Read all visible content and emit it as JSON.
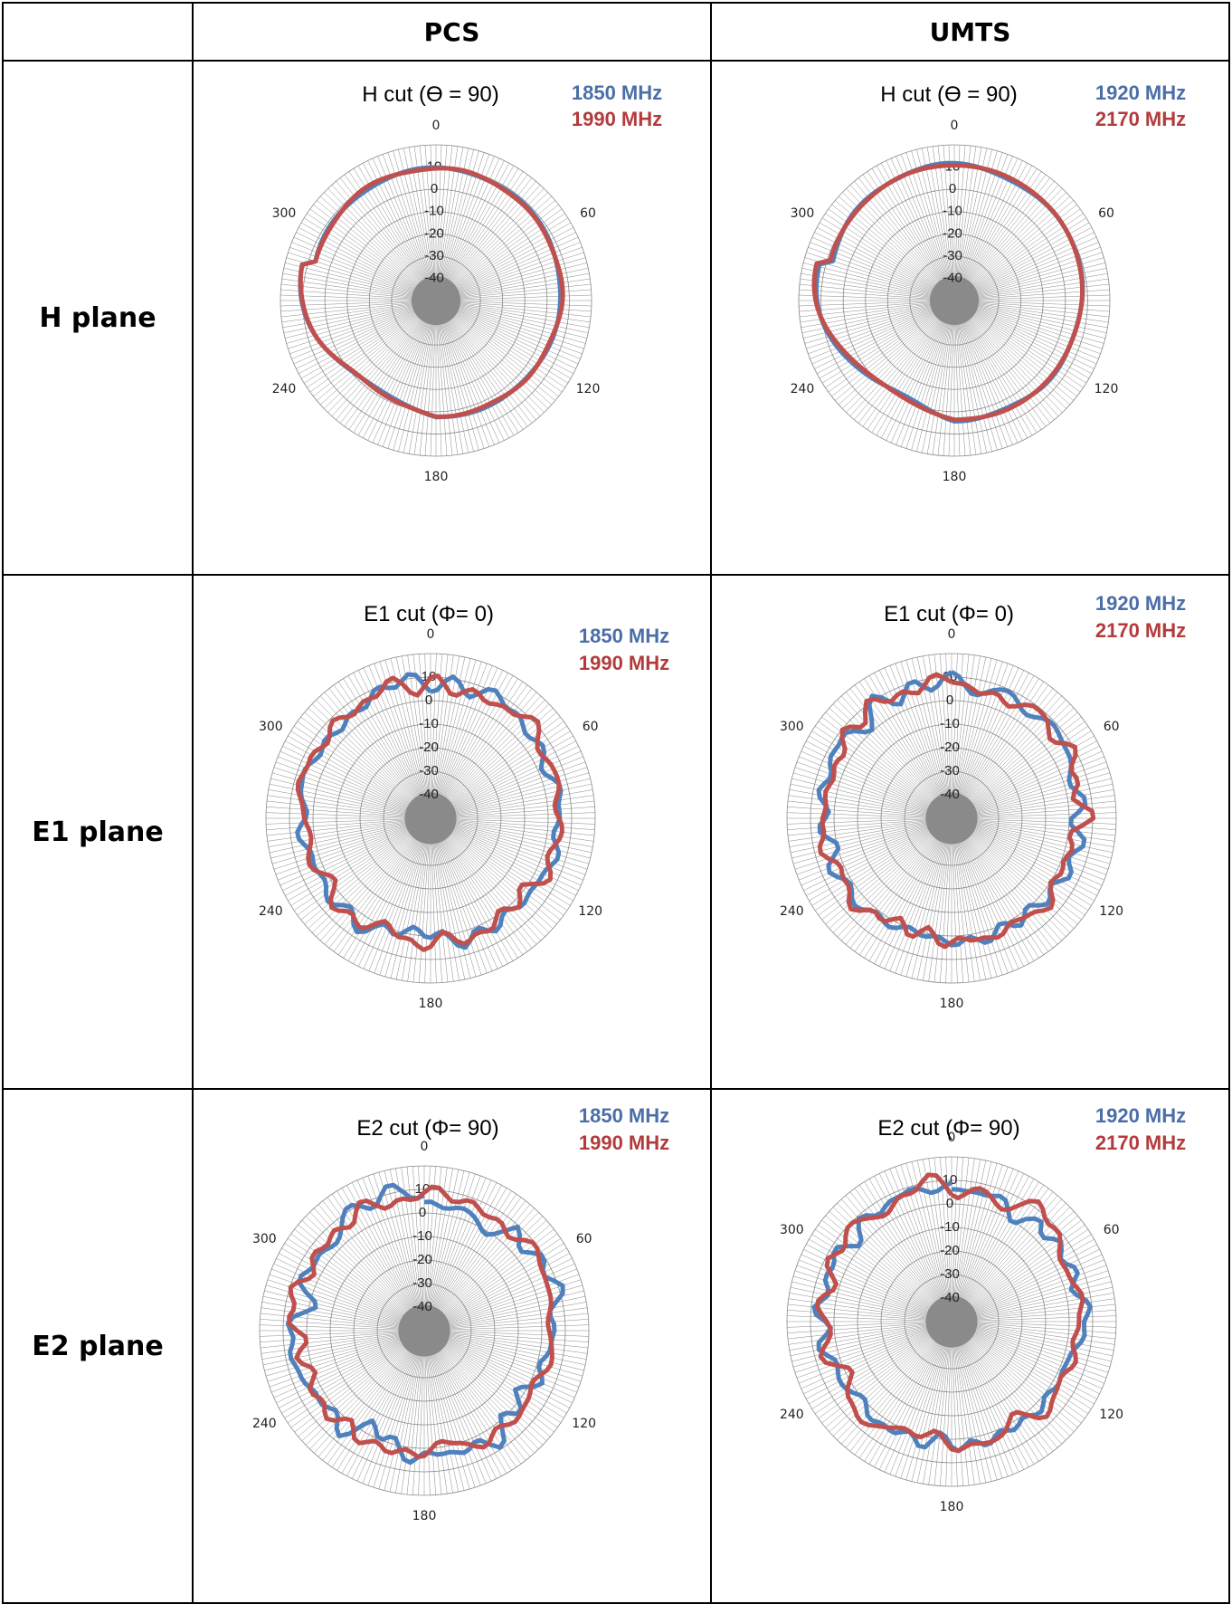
{
  "header": {
    "corner": "",
    "col1": "PCS",
    "col2": "UMTS"
  },
  "rows": [
    {
      "label": "H plane"
    },
    {
      "label": "E1 plane"
    },
    {
      "label": "E2 plane"
    }
  ],
  "colors": {
    "blue": "#4F81BD",
    "red": "#C0504D",
    "legend_blue": "#4A6EA8",
    "legend_red": "#B33B3B",
    "grid": "#8A8A8A"
  },
  "chart_data": [
    {
      "type": "line",
      "polar": true,
      "band": "PCS",
      "plane": "H plane",
      "title": "H cut (ϴ = 90)",
      "series": [
        {
          "name": "1850 MHz"
        },
        {
          "name": "1990 MHz"
        }
      ],
      "r_ticks": [
        "10",
        "0",
        "-10",
        "-20",
        "-30",
        "-40"
      ],
      "angle_labels": [
        "0",
        "60",
        "120",
        "180",
        "240",
        "300"
      ],
      "rlim": [
        -50,
        10
      ]
    },
    {
      "type": "line",
      "polar": true,
      "band": "UMTS",
      "plane": "H plane",
      "title": "H cut (ϴ = 90)",
      "series": [
        {
          "name": "1920 MHz"
        },
        {
          "name": "2170 MHz"
        }
      ],
      "r_ticks": [
        "10",
        "0",
        "-10",
        "-20",
        "-30",
        "-40"
      ],
      "angle_labels": [
        "0",
        "60",
        "120",
        "180",
        "240",
        "300"
      ],
      "rlim": [
        -50,
        10
      ]
    },
    {
      "type": "line",
      "polar": true,
      "band": "PCS",
      "plane": "E1 plane",
      "title": "E1 cut (Φ= 0)",
      "series": [
        {
          "name": "1850 MHz"
        },
        {
          "name": "1990 MHz"
        }
      ],
      "r_ticks": [
        "10",
        "0",
        "-10",
        "-20",
        "-30",
        "-40"
      ],
      "angle_labels": [
        "0",
        "60",
        "120",
        "180",
        "240",
        "300"
      ],
      "rlim": [
        -50,
        10
      ]
    },
    {
      "type": "line",
      "polar": true,
      "band": "UMTS",
      "plane": "E1 plane",
      "title": "E1 cut (Φ= 0)",
      "series": [
        {
          "name": "1920 MHz"
        },
        {
          "name": "2170 MHz"
        }
      ],
      "r_ticks": [
        "10",
        "0",
        "-10",
        "-20",
        "-30",
        "-40"
      ],
      "angle_labels": [
        "0",
        "60",
        "120",
        "180",
        "240",
        "300"
      ],
      "rlim": [
        -50,
        10
      ]
    },
    {
      "type": "line",
      "polar": true,
      "band": "PCS",
      "plane": "E2 plane",
      "title": "E2 cut (Φ= 90)",
      "series": [
        {
          "name": "1850 MHz"
        },
        {
          "name": "1990 MHz"
        }
      ],
      "r_ticks": [
        "10",
        "0",
        "-10",
        "-20",
        "-30",
        "-40"
      ],
      "angle_labels": [
        "0",
        "60",
        "120",
        "180",
        "240",
        "300"
      ],
      "rlim": [
        -50,
        10
      ]
    },
    {
      "type": "line",
      "polar": true,
      "band": "UMTS",
      "plane": "E2 plane",
      "title": "E2 cut (Φ= 90)",
      "series": [
        {
          "name": "1920 MHz"
        },
        {
          "name": "2170 MHz"
        }
      ],
      "r_ticks": [
        "10",
        "0",
        "-10",
        "-20",
        "-30",
        "-40"
      ],
      "angle_labels": [
        "0",
        "60",
        "120",
        "180",
        "240",
        "300"
      ],
      "rlim": [
        -50,
        10
      ]
    }
  ]
}
